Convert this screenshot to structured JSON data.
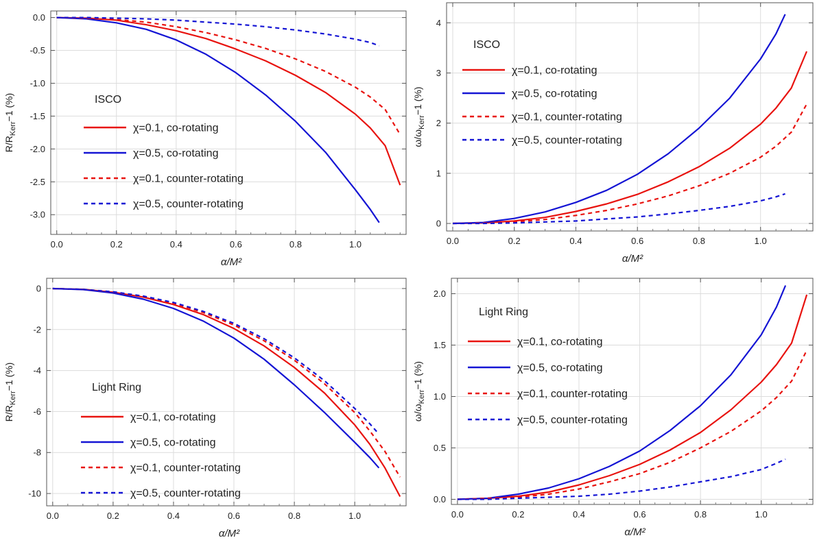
{
  "chart_data": [
    {
      "type": "line",
      "title": "",
      "xlabel": "α/M²",
      "ylabel": "R/R_Kerr−1 (%)",
      "xlim": [
        -0.02,
        1.17
      ],
      "ylim": [
        -3.3,
        0.1
      ],
      "xticks": [
        "0.0",
        "0.2",
        "0.4",
        "0.6",
        "0.8",
        "1.0"
      ],
      "yticks": [
        "0.0",
        "-0.5",
        "-1.0",
        "-1.5",
        "-2.0",
        "-2.5",
        "-3.0"
      ],
      "grid": true,
      "legend_title": "ISCO",
      "legend_placement": "left",
      "series": [
        {
          "name": "χ=0.1, co-rotating",
          "color": "#e8130f",
          "dash": "solid",
          "x": [
            0,
            0.1,
            0.2,
            0.3,
            0.4,
            0.5,
            0.6,
            0.7,
            0.8,
            0.9,
            1.0,
            1.05,
            1.1,
            1.15
          ],
          "y": [
            0,
            -0.01,
            -0.04,
            -0.11,
            -0.2,
            -0.32,
            -0.48,
            -0.66,
            -0.88,
            -1.14,
            -1.47,
            -1.68,
            -1.95,
            -2.55
          ]
        },
        {
          "name": "χ=0.5, co-rotating",
          "color": "#1414d4",
          "dash": "solid",
          "x": [
            0,
            0.1,
            0.2,
            0.3,
            0.4,
            0.5,
            0.6,
            0.7,
            0.8,
            0.9,
            1.0,
            1.05,
            1.08
          ],
          "y": [
            0,
            -0.02,
            -0.08,
            -0.18,
            -0.34,
            -0.56,
            -0.84,
            -1.18,
            -1.58,
            -2.05,
            -2.62,
            -2.92,
            -3.12
          ]
        },
        {
          "name": "χ=0.1, counter-rotating",
          "color": "#e8130f",
          "dash": "dashed",
          "x": [
            0,
            0.1,
            0.2,
            0.3,
            0.4,
            0.5,
            0.6,
            0.7,
            0.8,
            0.9,
            1.0,
            1.05,
            1.1,
            1.15
          ],
          "y": [
            0,
            -0.01,
            -0.03,
            -0.07,
            -0.14,
            -0.23,
            -0.34,
            -0.47,
            -0.63,
            -0.82,
            -1.06,
            -1.21,
            -1.4,
            -1.78
          ]
        },
        {
          "name": "χ=0.5, counter-rotating",
          "color": "#1414d4",
          "dash": "dashed",
          "x": [
            0,
            0.1,
            0.2,
            0.3,
            0.4,
            0.5,
            0.6,
            0.7,
            0.8,
            0.9,
            1.0,
            1.05,
            1.08
          ],
          "y": [
            0,
            0,
            -0.01,
            -0.02,
            -0.04,
            -0.07,
            -0.1,
            -0.14,
            -0.19,
            -0.25,
            -0.33,
            -0.38,
            -0.43
          ]
        }
      ]
    },
    {
      "type": "line",
      "title": "",
      "xlabel": "α/M²",
      "ylabel": "ω/ω_Kerr−1 (%)",
      "xlim": [
        -0.02,
        1.17
      ],
      "ylim": [
        -0.15,
        4.4
      ],
      "xticks": [
        "0.0",
        "0.2",
        "0.4",
        "0.6",
        "0.8",
        "1.0"
      ],
      "yticks": [
        "0",
        "1",
        "2",
        "3",
        "4"
      ],
      "grid": true,
      "legend_title": "ISCO",
      "legend_placement": "top-left",
      "series": [
        {
          "name": "χ=0.1, co-rotating",
          "color": "#e8130f",
          "dash": "solid",
          "x": [
            0,
            0.1,
            0.2,
            0.3,
            0.4,
            0.5,
            0.6,
            0.7,
            0.8,
            0.9,
            1.0,
            1.05,
            1.1,
            1.15
          ],
          "y": [
            0,
            0.01,
            0.05,
            0.12,
            0.24,
            0.39,
            0.58,
            0.83,
            1.13,
            1.5,
            1.98,
            2.3,
            2.7,
            3.43
          ]
        },
        {
          "name": "χ=0.5, co-rotating",
          "color": "#1414d4",
          "dash": "solid",
          "x": [
            0,
            0.1,
            0.2,
            0.3,
            0.4,
            0.5,
            0.6,
            0.7,
            0.8,
            0.9,
            1.0,
            1.05,
            1.08
          ],
          "y": [
            0,
            0.02,
            0.1,
            0.23,
            0.42,
            0.66,
            0.98,
            1.39,
            1.9,
            2.5,
            3.28,
            3.78,
            4.17
          ]
        },
        {
          "name": "χ=0.1, counter-rotating",
          "color": "#e8130f",
          "dash": "dashed",
          "x": [
            0,
            0.1,
            0.2,
            0.3,
            0.4,
            0.5,
            0.6,
            0.7,
            0.8,
            0.9,
            1.0,
            1.05,
            1.1,
            1.15
          ],
          "y": [
            0,
            0.01,
            0.03,
            0.08,
            0.16,
            0.26,
            0.39,
            0.55,
            0.75,
            1.0,
            1.32,
            1.54,
            1.82,
            2.38
          ]
        },
        {
          "name": "χ=0.5, counter-rotating",
          "color": "#1414d4",
          "dash": "dashed",
          "x": [
            0,
            0.1,
            0.2,
            0.3,
            0.4,
            0.5,
            0.6,
            0.7,
            0.8,
            0.9,
            1.0,
            1.05,
            1.08
          ],
          "y": [
            0,
            0,
            0.01,
            0.03,
            0.05,
            0.09,
            0.13,
            0.19,
            0.26,
            0.34,
            0.45,
            0.53,
            0.59
          ]
        }
      ]
    },
    {
      "type": "line",
      "title": "",
      "xlabel": "α/M²",
      "ylabel": "R/R_Kerr−1 (%)",
      "xlim": [
        -0.02,
        1.17
      ],
      "ylim": [
        -10.6,
        0.5
      ],
      "xticks": [
        "0.0",
        "0.2",
        "0.4",
        "0.6",
        "0.8",
        "1.0"
      ],
      "yticks": [
        "0",
        "-2",
        "-4",
        "-6",
        "-8",
        "-10"
      ],
      "grid": true,
      "legend_title": "Light Ring",
      "legend_placement": "bottom-left",
      "series": [
        {
          "name": "χ=0.1, co-rotating",
          "color": "#e8130f",
          "dash": "solid",
          "x": [
            0,
            0.1,
            0.2,
            0.3,
            0.4,
            0.5,
            0.6,
            0.7,
            0.8,
            0.9,
            1.0,
            1.05,
            1.1,
            1.15
          ],
          "y": [
            0,
            -0.04,
            -0.18,
            -0.42,
            -0.78,
            -1.28,
            -1.95,
            -2.8,
            -3.85,
            -5.1,
            -6.65,
            -7.6,
            -8.75,
            -10.15
          ]
        },
        {
          "name": "χ=0.5, co-rotating",
          "color": "#1414d4",
          "dash": "solid",
          "x": [
            0,
            0.1,
            0.2,
            0.3,
            0.4,
            0.5,
            0.6,
            0.7,
            0.8,
            0.9,
            1.0,
            1.05,
            1.08
          ],
          "y": [
            0,
            -0.05,
            -0.22,
            -0.52,
            -0.97,
            -1.6,
            -2.42,
            -3.45,
            -4.7,
            -6.05,
            -7.5,
            -8.25,
            -8.75
          ]
        },
        {
          "name": "χ=0.1, counter-rotating",
          "color": "#e8130f",
          "dash": "dashed",
          "x": [
            0,
            0.1,
            0.2,
            0.3,
            0.4,
            0.5,
            0.6,
            0.7,
            0.8,
            0.9,
            1.0,
            1.05,
            1.1,
            1.15
          ],
          "y": [
            0,
            -0.04,
            -0.17,
            -0.39,
            -0.72,
            -1.18,
            -1.78,
            -2.55,
            -3.5,
            -4.65,
            -6.05,
            -6.95,
            -7.95,
            -9.2
          ]
        },
        {
          "name": "χ=0.5, counter-rotating",
          "color": "#1414d4",
          "dash": "dashed",
          "x": [
            0,
            0.1,
            0.2,
            0.3,
            0.4,
            0.5,
            0.6,
            0.7,
            0.8,
            0.9,
            1.0,
            1.05,
            1.08
          ],
          "y": [
            0,
            -0.04,
            -0.16,
            -0.37,
            -0.68,
            -1.12,
            -1.7,
            -2.45,
            -3.38,
            -4.5,
            -5.85,
            -6.6,
            -7.1
          ]
        }
      ]
    },
    {
      "type": "line",
      "title": "",
      "xlabel": "α/M²",
      "ylabel": "ω/ω_Kerr−1 (%)",
      "xlim": [
        -0.02,
        1.17
      ],
      "ylim": [
        -0.05,
        2.15
      ],
      "xticks": [
        "0.0",
        "0.2",
        "0.4",
        "0.6",
        "0.8",
        "1.0"
      ],
      "yticks": [
        "0.0",
        "0.5",
        "1.0",
        "1.5",
        "2.0"
      ],
      "grid": true,
      "legend_title": "Light Ring",
      "legend_placement": "top-left",
      "series": [
        {
          "name": "χ=0.1, co-rotating",
          "color": "#e8130f",
          "dash": "solid",
          "x": [
            0,
            0.1,
            0.2,
            0.3,
            0.4,
            0.5,
            0.6,
            0.7,
            0.8,
            0.9,
            1.0,
            1.05,
            1.1,
            1.15
          ],
          "y": [
            0,
            0.01,
            0.03,
            0.07,
            0.14,
            0.23,
            0.34,
            0.48,
            0.65,
            0.87,
            1.14,
            1.31,
            1.52,
            1.99
          ]
        },
        {
          "name": "χ=0.5, co-rotating",
          "color": "#1414d4",
          "dash": "solid",
          "x": [
            0,
            0.1,
            0.2,
            0.3,
            0.4,
            0.5,
            0.6,
            0.7,
            0.8,
            0.9,
            1.0,
            1.05,
            1.08
          ],
          "y": [
            0,
            0.01,
            0.05,
            0.11,
            0.2,
            0.32,
            0.47,
            0.67,
            0.91,
            1.21,
            1.6,
            1.87,
            2.08
          ]
        },
        {
          "name": "χ=0.1, counter-rotating",
          "color": "#e8130f",
          "dash": "dashed",
          "x": [
            0,
            0.1,
            0.2,
            0.3,
            0.4,
            0.5,
            0.6,
            0.7,
            0.8,
            0.9,
            1.0,
            1.05,
            1.1,
            1.15
          ],
          "y": [
            0,
            0.01,
            0.02,
            0.05,
            0.1,
            0.17,
            0.25,
            0.36,
            0.5,
            0.66,
            0.86,
            0.99,
            1.15,
            1.45
          ]
        },
        {
          "name": "χ=0.5, counter-rotating",
          "color": "#1414d4",
          "dash": "dashed",
          "x": [
            0,
            0.1,
            0.2,
            0.3,
            0.4,
            0.5,
            0.6,
            0.7,
            0.8,
            0.9,
            1.0,
            1.05,
            1.08
          ],
          "y": [
            0,
            0,
            0.01,
            0.02,
            0.03,
            0.05,
            0.08,
            0.12,
            0.17,
            0.22,
            0.29,
            0.35,
            0.39
          ]
        }
      ]
    }
  ]
}
